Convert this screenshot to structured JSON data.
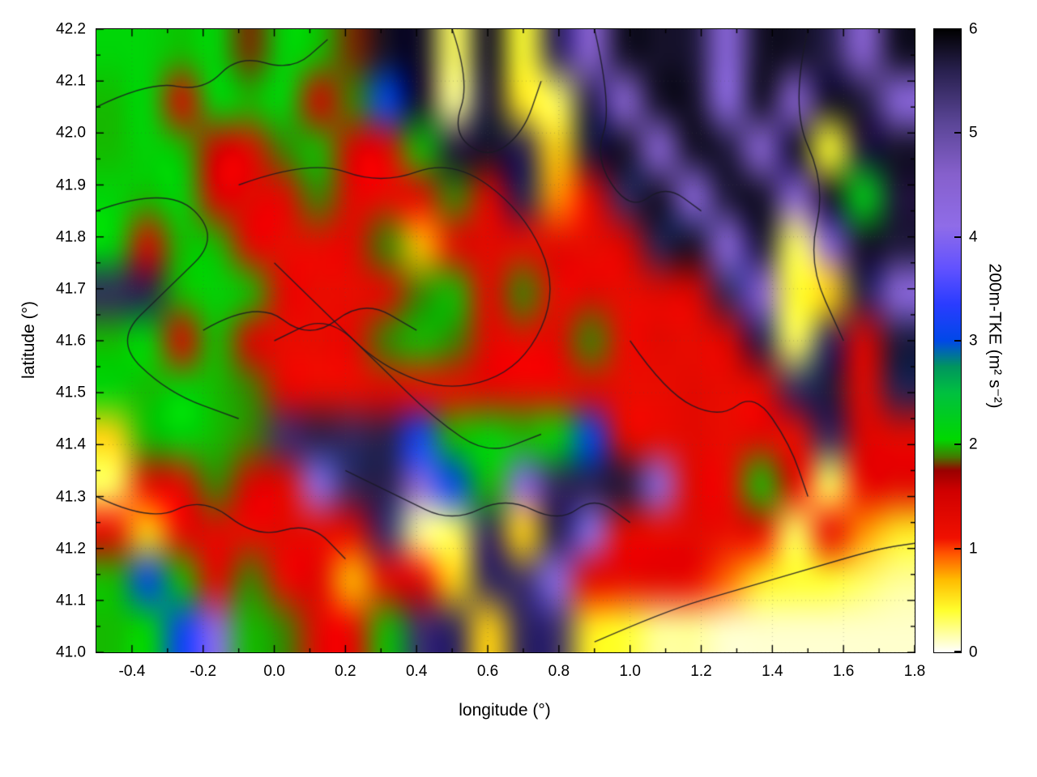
{
  "chart_data": {
    "type": "heatmap",
    "title": "",
    "xlabel": "longitude (°)",
    "ylabel": "latitude (°)",
    "xlim": [
      -0.5,
      1.8
    ],
    "ylim": [
      41.0,
      42.2
    ],
    "grid_lines": "dotted",
    "legend": "none",
    "x_ticks": [
      -0.4,
      -0.2,
      0.0,
      0.2,
      0.4,
      0.6,
      0.8,
      1.0,
      1.2,
      1.4,
      1.6,
      1.8
    ],
    "x_tick_labels": [
      "-0.4",
      "-0.2",
      "0.0",
      "0.2",
      "0.4",
      "0.6",
      "0.8",
      "1.0",
      "1.2",
      "1.4",
      "1.6",
      "1.8"
    ],
    "y_ticks": [
      41.0,
      41.1,
      41.2,
      41.3,
      41.4,
      41.5,
      41.6,
      41.7,
      41.8,
      41.9,
      42.0,
      42.1,
      42.2
    ],
    "y_tick_labels": [
      "41.0",
      "41.1",
      "41.2",
      "41.3",
      "41.4",
      "41.5",
      "41.6",
      "41.7",
      "41.8",
      "41.9",
      "42.0",
      "42.1",
      "42.2"
    ],
    "colorbar": {
      "label": "200m-TKE (m² s⁻²)",
      "range": [
        0,
        6
      ],
      "ticks": [
        0,
        1,
        2,
        3,
        4,
        5,
        6
      ],
      "tick_labels": [
        "0",
        "1",
        "2",
        "3",
        "4",
        "5",
        "6"
      ],
      "colormap": [
        [
          0.0,
          "#ffffff"
        ],
        [
          0.4,
          "#ffff2e"
        ],
        [
          0.7,
          "#ffbb00"
        ],
        [
          0.95,
          "#ff5500"
        ],
        [
          1.1,
          "#f01000"
        ],
        [
          1.55,
          "#d00000"
        ],
        [
          1.75,
          "#990000"
        ],
        [
          1.88,
          "#447700"
        ],
        [
          2.05,
          "#00d800"
        ],
        [
          2.5,
          "#00c040"
        ],
        [
          2.75,
          "#00955e"
        ],
        [
          3.0,
          "#0048e8"
        ],
        [
          3.35,
          "#2a3cff"
        ],
        [
          3.7,
          "#6252ff"
        ],
        [
          4.1,
          "#8f6ce8"
        ],
        [
          4.6,
          "#8660cc"
        ],
        [
          5.1,
          "#5a4596"
        ],
        [
          5.6,
          "#28204e"
        ],
        [
          6.0,
          "#000000"
        ]
      ]
    },
    "grid": {
      "lon": [
        -0.5,
        -0.4,
        -0.3,
        -0.2,
        -0.1,
        0.0,
        0.1,
        0.2,
        0.3,
        0.4,
        0.5,
        0.6,
        0.7,
        0.8,
        0.9,
        1.0,
        1.1,
        1.2,
        1.3,
        1.4,
        1.5,
        1.6,
        1.7,
        1.8
      ],
      "lat": [
        42.2,
        42.1,
        42.0,
        41.9,
        41.8,
        41.7,
        41.6,
        41.5,
        41.4,
        41.3,
        41.2,
        41.1,
        41.0
      ],
      "values": [
        [
          2.1,
          2.1,
          2.0,
          2.1,
          1.8,
          2.1,
          2.0,
          1.8,
          5.8,
          5.8,
          0.3,
          5.8,
          0.4,
          5.5,
          4.5,
          5.8,
          5.8,
          5.7,
          4.3,
          5.8,
          5.8,
          5.6,
          4.5,
          5.8
        ],
        [
          2.0,
          2.1,
          1.4,
          2.1,
          2.0,
          2.1,
          1.5,
          1.9,
          3.0,
          5.8,
          0.2,
          5.7,
          0.5,
          0.3,
          5.6,
          4.4,
          5.8,
          5.8,
          4.2,
          5.8,
          4.5,
          5.8,
          5.7,
          4.3
        ],
        [
          2.0,
          2.1,
          2.0,
          1.5,
          1.3,
          1.9,
          2.0,
          1.4,
          1.3,
          2.0,
          5.7,
          5.8,
          5.6,
          0.6,
          5.7,
          5.8,
          4.4,
          5.8,
          5.7,
          4.4,
          5.8,
          0.4,
          5.7,
          5.8
        ],
        [
          2.1,
          2.0,
          2.1,
          1.4,
          1.3,
          1.3,
          1.9,
          1.3,
          1.2,
          1.3,
          1.9,
          1.4,
          5.6,
          0.8,
          1.3,
          5.5,
          5.8,
          4.3,
          5.7,
          5.8,
          4.4,
          5.8,
          2.2,
          5.7
        ],
        [
          2.1,
          1.4,
          2.0,
          2.0,
          1.3,
          1.2,
          1.2,
          1.3,
          1.9,
          0.7,
          1.2,
          1.3,
          1.2,
          1.3,
          1.2,
          1.4,
          5.6,
          5.8,
          4.3,
          5.7,
          0.3,
          4.4,
          5.8,
          5.7
        ],
        [
          5.5,
          5.6,
          2.0,
          2.1,
          2.0,
          1.3,
          1.2,
          1.2,
          1.3,
          1.9,
          2.0,
          1.3,
          1.9,
          1.2,
          1.3,
          1.2,
          1.3,
          1.4,
          5.5,
          4.4,
          0.4,
          0.6,
          5.6,
          4.3
        ],
        [
          2.0,
          2.1,
          1.4,
          2.0,
          1.4,
          1.2,
          1.2,
          1.3,
          1.9,
          2.0,
          1.9,
          1.3,
          1.2,
          1.3,
          1.9,
          1.2,
          1.3,
          1.2,
          1.4,
          5.6,
          0.3,
          5.5,
          1.4,
          5.7
        ],
        [
          2.1,
          2.0,
          2.1,
          2.0,
          1.9,
          1.3,
          1.2,
          1.2,
          1.3,
          1.2,
          1.2,
          1.3,
          1.2,
          1.2,
          1.3,
          1.2,
          1.2,
          1.3,
          1.2,
          1.3,
          5.5,
          5.7,
          1.3,
          5.6
        ],
        [
          0.6,
          2.0,
          2.1,
          2.0,
          1.9,
          5.4,
          5.6,
          5.5,
          5.6,
          3.1,
          2.0,
          2.1,
          2.0,
          2.1,
          3.0,
          1.3,
          1.2,
          1.3,
          1.2,
          1.3,
          1.2,
          5.5,
          1.4,
          1.3
        ],
        [
          0.3,
          1.2,
          1.3,
          1.9,
          1.4,
          1.3,
          4.2,
          5.5,
          5.6,
          4.3,
          3.0,
          2.0,
          4.2,
          5.5,
          5.6,
          5.7,
          4.3,
          1.3,
          1.2,
          2.0,
          1.3,
          0.3,
          1.2,
          1.3
        ],
        [
          1.2,
          0.6,
          1.2,
          1.3,
          1.2,
          1.3,
          1.2,
          1.3,
          5.4,
          0.2,
          0.3,
          5.5,
          0.6,
          5.6,
          4.2,
          1.3,
          1.2,
          1.3,
          1.2,
          1.2,
          0.3,
          1.2,
          0.8,
          0.5
        ],
        [
          2.0,
          3.0,
          2.0,
          1.3,
          1.9,
          1.2,
          1.3,
          0.7,
          1.2,
          1.3,
          0.6,
          5.5,
          5.4,
          4.2,
          1.3,
          1.2,
          1.3,
          1.2,
          0.9,
          0.5,
          0.4,
          0.4,
          0.3,
          0.2
        ],
        [
          2.0,
          2.1,
          3.1,
          4.2,
          2.0,
          1.9,
          1.3,
          1.2,
          2.0,
          5.4,
          5.5,
          0.6,
          5.5,
          5.4,
          0.5,
          0.4,
          0.2,
          0.2,
          0.1,
          0.1,
          0.1,
          0.1,
          0.1,
          0.1
        ]
      ]
    },
    "contour_lines": [
      [
        [
          -0.5,
          42.05
        ],
        [
          -0.35,
          42.1
        ],
        [
          -0.2,
          42.08
        ],
        [
          -0.1,
          42.15
        ],
        [
          0.05,
          42.12
        ],
        [
          0.15,
          42.18
        ]
      ],
      [
        [
          -0.5,
          41.85
        ],
        [
          -0.3,
          41.9
        ],
        [
          -0.15,
          41.8
        ],
        [
          -0.3,
          41.7
        ],
        [
          -0.45,
          41.6
        ],
        [
          -0.3,
          41.5
        ],
        [
          -0.1,
          41.45
        ]
      ],
      [
        [
          -0.1,
          41.9
        ],
        [
          0.1,
          41.95
        ],
        [
          0.3,
          41.9
        ],
        [
          0.5,
          41.95
        ],
        [
          0.7,
          41.85
        ],
        [
          0.8,
          41.7
        ],
        [
          0.7,
          41.55
        ],
        [
          0.5,
          41.5
        ],
        [
          0.3,
          41.55
        ],
        [
          0.15,
          41.65
        ],
        [
          0.0,
          41.6
        ]
      ],
      [
        [
          0.0,
          41.75
        ],
        [
          0.15,
          41.65
        ],
        [
          0.3,
          41.55
        ],
        [
          0.45,
          41.45
        ],
        [
          0.6,
          41.38
        ],
        [
          0.75,
          41.42
        ]
      ],
      [
        [
          0.2,
          41.35
        ],
        [
          0.35,
          41.3
        ],
        [
          0.5,
          41.25
        ],
        [
          0.65,
          41.3
        ],
        [
          0.8,
          41.25
        ],
        [
          0.9,
          41.3
        ],
        [
          1.0,
          41.25
        ]
      ],
      [
        [
          0.9,
          41.02
        ],
        [
          1.1,
          41.08
        ],
        [
          1.3,
          41.12
        ],
        [
          1.5,
          41.16
        ],
        [
          1.7,
          41.2
        ],
        [
          1.8,
          41.21
        ]
      ],
      [
        [
          1.5,
          42.2
        ],
        [
          1.45,
          42.05
        ],
        [
          1.55,
          41.9
        ],
        [
          1.5,
          41.75
        ],
        [
          1.6,
          41.6
        ]
      ],
      [
        [
          0.5,
          42.2
        ],
        [
          0.55,
          42.1
        ],
        [
          0.5,
          42.0
        ],
        [
          0.6,
          41.95
        ],
        [
          0.7,
          42.0
        ],
        [
          0.75,
          42.1
        ]
      ],
      [
        [
          1.0,
          41.6
        ],
        [
          1.1,
          41.5
        ],
        [
          1.25,
          41.45
        ],
        [
          1.35,
          41.5
        ],
        [
          1.45,
          41.4
        ],
        [
          1.5,
          41.3
        ]
      ],
      [
        [
          -0.5,
          41.3
        ],
        [
          -0.35,
          41.25
        ],
        [
          -0.2,
          41.3
        ],
        [
          -0.05,
          41.22
        ],
        [
          0.1,
          41.25
        ],
        [
          0.2,
          41.18
        ]
      ],
      [
        [
          -0.2,
          41.62
        ],
        [
          -0.05,
          41.68
        ],
        [
          0.1,
          41.6
        ],
        [
          0.25,
          41.68
        ],
        [
          0.4,
          41.62
        ]
      ],
      [
        [
          0.9,
          42.2
        ],
        [
          0.95,
          42.05
        ],
        [
          0.9,
          41.95
        ],
        [
          1.0,
          41.85
        ],
        [
          1.1,
          41.9
        ],
        [
          1.2,
          41.85
        ]
      ]
    ]
  }
}
